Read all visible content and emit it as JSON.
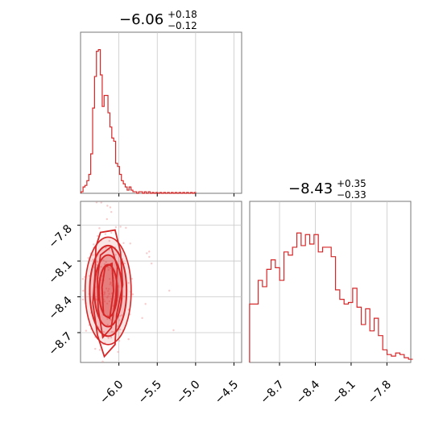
{
  "chart_data": [
    {
      "type": "histogram",
      "panel": "top-left",
      "title": {
        "value": "−6.06",
        "plus": "+0.18",
        "minus": "−0.12"
      },
      "xlim": [
        -6.5,
        -4.4
      ],
      "xticks": [
        -6.0,
        -5.5,
        -5.0,
        -4.5
      ],
      "grid": true,
      "color": "#d62728",
      "bins": [
        [
          -6.48,
          0.01
        ],
        [
          -6.455,
          0.04
        ],
        [
          -6.43,
          0.05
        ],
        [
          -6.405,
          0.08
        ],
        [
          -6.38,
          0.12
        ],
        [
          -6.355,
          0.25
        ],
        [
          -6.33,
          0.54
        ],
        [
          -6.305,
          0.74
        ],
        [
          -6.28,
          0.9
        ],
        [
          -6.255,
          0.91
        ],
        [
          -6.23,
          0.75
        ],
        [
          -6.205,
          0.55
        ],
        [
          -6.18,
          0.62
        ],
        [
          -6.155,
          0.62
        ],
        [
          -6.13,
          0.51
        ],
        [
          -6.105,
          0.42
        ],
        [
          -6.08,
          0.35
        ],
        [
          -6.055,
          0.33
        ],
        [
          -6.03,
          0.19
        ],
        [
          -6.005,
          0.17
        ],
        [
          -5.98,
          0.12
        ],
        [
          -5.955,
          0.08
        ],
        [
          -5.93,
          0.06
        ],
        [
          -5.905,
          0.04
        ],
        [
          -5.88,
          0.02
        ],
        [
          -5.855,
          0.04
        ],
        [
          -5.83,
          0.02
        ],
        [
          -5.805,
          0.01
        ],
        [
          -5.78,
          0.01
        ],
        [
          -5.755,
          0.0
        ],
        [
          -5.73,
          0.01
        ],
        [
          -5.705,
          0.01
        ],
        [
          -5.68,
          0.0
        ],
        [
          -5.655,
          0.01
        ],
        [
          -5.63,
          0.0
        ],
        [
          -5.605,
          0.01
        ],
        [
          -5.58,
          0.0
        ],
        [
          -5.555,
          0.005
        ],
        [
          -5.53,
          0.0
        ],
        [
          -5.505,
          0.005
        ],
        [
          -5.48,
          0.0
        ],
        [
          -5.455,
          0.005
        ],
        [
          -5.43,
          0.0
        ],
        [
          -5.405,
          0.005
        ],
        [
          -5.38,
          0.0
        ],
        [
          -5.355,
          0.005
        ],
        [
          -5.33,
          0.0
        ],
        [
          -5.305,
          0.005
        ],
        [
          -5.28,
          0.0
        ],
        [
          -5.255,
          0.005
        ],
        [
          -5.23,
          0.0
        ],
        [
          -5.205,
          0.005
        ],
        [
          -5.18,
          0.0
        ],
        [
          -5.155,
          0.005
        ],
        [
          -5.13,
          0.0
        ],
        [
          -5.105,
          0.005
        ],
        [
          -5.08,
          0.0
        ],
        [
          -5.055,
          0.005
        ],
        [
          -5.03,
          0.0
        ],
        [
          -5.005,
          0.005
        ]
      ]
    },
    {
      "type": "histogram",
      "panel": "bottom-right",
      "title": {
        "value": "−8.43",
        "plus": "+0.35",
        "minus": "−0.33"
      },
      "xlim": [
        -8.95,
        -7.6
      ],
      "xticks": [
        -8.7,
        -8.4,
        -8.1,
        -7.8
      ],
      "xticklabels": [
        "−8.7",
        "−8.4",
        "−8.1",
        "−7.8"
      ],
      "grid": true,
      "color": "#d62728",
      "bins": [
        [
          -8.933,
          0.37
        ],
        [
          -8.897,
          0.37
        ],
        [
          -8.861,
          0.52
        ],
        [
          -8.825,
          0.48
        ],
        [
          -8.789,
          0.59
        ],
        [
          -8.753,
          0.65
        ],
        [
          -8.717,
          0.6
        ],
        [
          -8.681,
          0.52
        ],
        [
          -8.645,
          0.7
        ],
        [
          -8.609,
          0.68
        ],
        [
          -8.573,
          0.73
        ],
        [
          -8.537,
          0.82
        ],
        [
          -8.501,
          0.74
        ],
        [
          -8.465,
          0.81
        ],
        [
          -8.429,
          0.75
        ],
        [
          -8.393,
          0.81
        ],
        [
          -8.357,
          0.7
        ],
        [
          -8.321,
          0.73
        ],
        [
          -8.285,
          0.73
        ],
        [
          -8.249,
          0.67
        ],
        [
          -8.213,
          0.46
        ],
        [
          -8.177,
          0.4
        ],
        [
          -8.141,
          0.37
        ],
        [
          -8.105,
          0.38
        ],
        [
          -8.069,
          0.47
        ],
        [
          -8.033,
          0.35
        ],
        [
          -7.997,
          0.24
        ],
        [
          -7.961,
          0.34
        ],
        [
          -7.925,
          0.2
        ],
        [
          -7.889,
          0.28
        ],
        [
          -7.853,
          0.17
        ],
        [
          -7.817,
          0.08
        ],
        [
          -7.781,
          0.05
        ],
        [
          -7.745,
          0.04
        ],
        [
          -7.709,
          0.06
        ],
        [
          -7.673,
          0.05
        ],
        [
          -7.637,
          0.03
        ],
        [
          -7.601,
          0.02
        ]
      ]
    },
    {
      "type": "contour",
      "panel": "bottom-left",
      "xlim": [
        -6.5,
        -4.4
      ],
      "ylim": [
        -8.95,
        -7.6
      ],
      "xticks": [
        -6.0,
        -5.5,
        -5.0,
        -4.5
      ],
      "xticklabels": [
        "−6.0",
        "−5.5",
        "−5.0",
        "−4.5"
      ],
      "yticks": [
        -8.7,
        -8.4,
        -8.1,
        -7.8
      ],
      "yticklabels": [
        "−8.7",
        "−8.4",
        "−8.1",
        "−7.8"
      ],
      "grid": true,
      "color": "#d62728",
      "levels": [
        {
          "center": [
            -6.14,
            -8.35
          ],
          "sx": 0.3,
          "sy": 0.45
        },
        {
          "center": [
            -6.14,
            -8.35
          ],
          "sx": 0.24,
          "sy": 0.38
        },
        {
          "center": [
            -6.14,
            -8.35
          ],
          "sx": 0.18,
          "sy": 0.3
        },
        {
          "center": [
            -6.14,
            -8.35
          ],
          "sx": 0.12,
          "sy": 0.22
        }
      ]
    }
  ]
}
